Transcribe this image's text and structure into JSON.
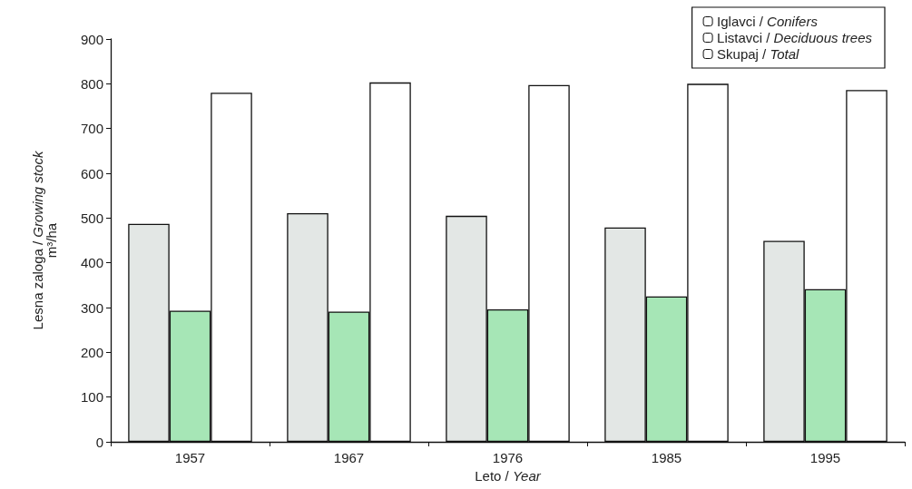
{
  "chart_data": {
    "type": "bar",
    "xlabel": "Leto / Year",
    "ylabel": "Lesna zaloga / Growing stock\nm³/ha",
    "categories": [
      "1957",
      "1967",
      "1976",
      "1985",
      "1995"
    ],
    "series": [
      {
        "name": "Iglavci / Conifers",
        "color": "#e3e7e5",
        "values": [
          487,
          511,
          505,
          479,
          449
        ]
      },
      {
        "name": "Listavci / Deciduous trees",
        "color": "#a6e6b6",
        "values": [
          293,
          291,
          296,
          325,
          341
        ]
      },
      {
        "name": "Skupaj / Total",
        "color": "#ffffff",
        "values": [
          780,
          803,
          797,
          800,
          786
        ]
      }
    ],
    "ylim": [
      0,
      900
    ],
    "yticks": [
      0,
      100,
      200,
      300,
      400,
      500,
      600,
      700,
      800,
      900
    ],
    "grid": false,
    "legend": "top right"
  }
}
